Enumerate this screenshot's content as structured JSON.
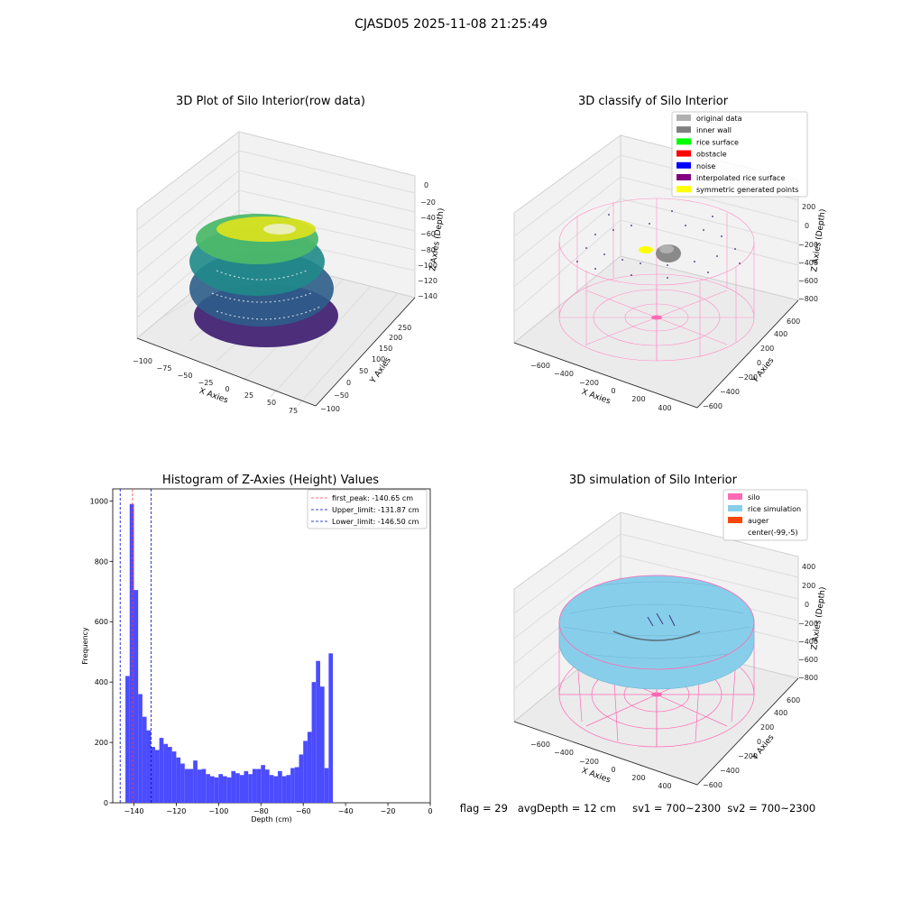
{
  "suptitle": "CJASD05 2025-11-08 21:25:49",
  "colors": {
    "bar": "#4b4bff",
    "first_peak": "#ff3b3b",
    "limits": "#0000cc",
    "silo": "#ff69b4",
    "rice": "#87ceeb",
    "auger": "#ff4500",
    "pane": "#f2f2f2"
  },
  "chart_data": [
    {
      "type": "scatter3d",
      "title": "3D Plot of Silo Interior(row data)",
      "xlabel": "X Axies",
      "ylabel": "Y Axies",
      "zlabel": "Z Axies (Depth)",
      "xticks": [
        "−100",
        "−75",
        "−50",
        "−25",
        "0",
        "25",
        "50",
        "75"
      ],
      "yticks": [
        "−100",
        "−50",
        "0",
        "50",
        "100",
        "150",
        "200",
        "250"
      ],
      "zticks": [
        "0",
        "−20",
        "−40",
        "−60",
        "−80",
        "−100",
        "−120",
        "−140"
      ],
      "colormap": "viridis"
    },
    {
      "type": "scatter3d",
      "title": "3D classify of Silo Interior",
      "xlabel": "X Axies",
      "ylabel": "Y Axies",
      "zlabel": "Z Axies (Depth)",
      "xticks": [
        "−600",
        "−400",
        "−200",
        "0",
        "200",
        "400"
      ],
      "yticks": [
        "−600",
        "−400",
        "−200",
        "0",
        "200",
        "400",
        "600"
      ],
      "zticks": [
        "200",
        "0",
        "−200",
        "−400",
        "−600",
        "−800"
      ],
      "legend": [
        {
          "label": "original data",
          "color": "#b0b0b0"
        },
        {
          "label": "inner wall",
          "color": "#808080"
        },
        {
          "label": "rice surface",
          "color": "#00ff00"
        },
        {
          "label": "obstacle",
          "color": "#ff0000"
        },
        {
          "label": "noise",
          "color": "#0000ff"
        },
        {
          "label": "interpolated rice surface",
          "color": "#800080"
        },
        {
          "label": "symmetric generated points",
          "color": "#ffff00"
        }
      ]
    },
    {
      "type": "bar",
      "title": "Histogram of Z-Axies (Height) Values",
      "xlabel": "Depth (cm)",
      "ylabel": "Frequency",
      "xlim": [
        -150,
        0
      ],
      "ylim": [
        0,
        1040
      ],
      "xticks": [
        -140,
        -120,
        -100,
        -80,
        -60,
        -40,
        -20,
        0
      ],
      "xtick_labels": [
        "−140",
        "−120",
        "−100",
        "−80",
        "−60",
        "−40",
        "−20",
        "0"
      ],
      "yticks": [
        0,
        200,
        400,
        600,
        800,
        1000
      ],
      "ytick_labels": [
        "0",
        "200",
        "400",
        "600",
        "800",
        "1000"
      ],
      "bin_start": -144.0,
      "bin_width": 2.0,
      "values": [
        420,
        990,
        705,
        360,
        285,
        240,
        185,
        175,
        215,
        195,
        185,
        170,
        150,
        130,
        112,
        112,
        140,
        110,
        112,
        95,
        88,
        84,
        95,
        88,
        84,
        105,
        98,
        92,
        105,
        95,
        112,
        112,
        125,
        110,
        92,
        88,
        105,
        88,
        92,
        115,
        118,
        160,
        205,
        235,
        400,
        470,
        385,
        115,
        495
      ],
      "vlines": [
        {
          "label": "first_peak: -140.65 cm",
          "x": -140.65,
          "color": "#ff3b3b"
        },
        {
          "label": "Upper_limit: -131.87 cm",
          "x": -131.87,
          "color": "#0000cc"
        },
        {
          "label": "Lower_limit: -146.50 cm",
          "x": -146.5,
          "color": "#0000cc"
        }
      ]
    },
    {
      "type": "surface3d",
      "title": "3D simulation of Silo Interior",
      "xlabel": "X Axies",
      "ylabel": "Y Axies",
      "zlabel": "Z Axies (Depth)",
      "xticks": [
        "−600",
        "−400",
        "−200",
        "0",
        "200",
        "400"
      ],
      "yticks": [
        "−600",
        "−400",
        "−200",
        "0",
        "200",
        "400",
        "600"
      ],
      "zticks": [
        "400",
        "200",
        "0",
        "−200",
        "−400",
        "−600",
        "−800"
      ],
      "legend": [
        {
          "label": "silo",
          "color": "#ff69b4"
        },
        {
          "label": "rice simulation",
          "color": "#87ceeb"
        },
        {
          "label": "auger",
          "color": "#ff4500"
        },
        {
          "label": "center(-99,-5)",
          "color": ""
        }
      ]
    }
  ],
  "status_line": "flag = 29   avgDepth = 12 cm     sv1 = 700~2300  sv2 = 700~2300"
}
